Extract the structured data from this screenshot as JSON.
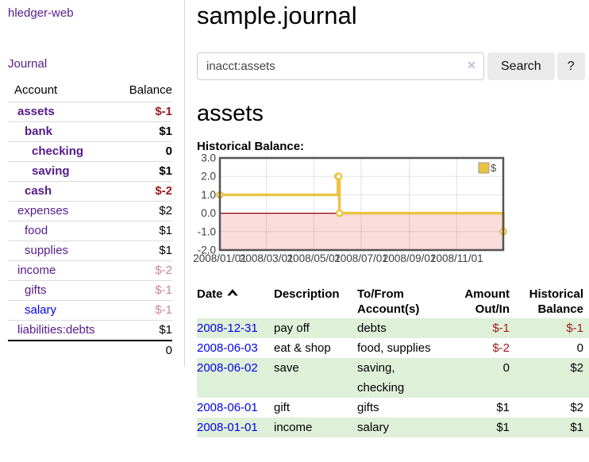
{
  "colors": {
    "link_purple": "#551a8b",
    "link_blue": "#0202ee",
    "negative_strong": "#9e1a1f",
    "negative_dim": "#c9898f",
    "row_highlight_green": "#dff0d8",
    "chart_line_yellow": "#edc240",
    "chart_negative_pink": "#fbdcdc",
    "chart_zero_line_red": "#8b0000",
    "chart_border_gray": "#545454",
    "button_gray": "#ebebeb"
  },
  "sidebar": {
    "app_title": "hledger-web",
    "nav": [
      {
        "label": "Journal"
      }
    ],
    "accounts_table": {
      "headers": [
        "Account",
        "Balance"
      ],
      "accounts": [
        {
          "name": "assets",
          "depth": 0,
          "bold": true,
          "balance": "$-1",
          "balance_style": "neg-strong"
        },
        {
          "name": "bank",
          "depth": 1,
          "bold": true,
          "balance": "$1",
          "balance_style": "pos"
        },
        {
          "name": "checking",
          "depth": 2,
          "bold": true,
          "balance": "0",
          "balance_style": "pos"
        },
        {
          "name": "saving",
          "depth": 2,
          "bold": true,
          "balance": "$1",
          "balance_style": "pos"
        },
        {
          "name": "cash",
          "depth": 1,
          "bold": true,
          "balance": "$-2",
          "balance_style": "neg-strong"
        },
        {
          "name": "expenses",
          "depth": 0,
          "bold": false,
          "balance": "$2",
          "balance_style": "pos"
        },
        {
          "name": "food",
          "depth": 1,
          "bold": false,
          "balance": "$1",
          "balance_style": "pos"
        },
        {
          "name": "supplies",
          "depth": 1,
          "bold": false,
          "balance": "$1",
          "balance_style": "pos"
        },
        {
          "name": "income",
          "depth": 0,
          "bold": false,
          "balance": "$-2",
          "balance_style": "neg-dim"
        },
        {
          "name": "gifts",
          "depth": 1,
          "bold": false,
          "balance": "$-1",
          "balance_style": "neg-dim"
        },
        {
          "name": "salary",
          "depth": 1,
          "bold": false,
          "link_color": "blue",
          "balance": "$-1",
          "balance_style": "neg-dim"
        },
        {
          "name": "liabilities:debts",
          "depth": 0,
          "bold": false,
          "balance": "$1",
          "balance_style": "pos"
        }
      ],
      "total": "0"
    }
  },
  "main": {
    "title": "sample.journal",
    "search": {
      "value": "inacct:assets",
      "clear_icon": "✕",
      "button": "Search",
      "help_button": "?"
    },
    "account_heading": "assets",
    "chart_label": "Historical Balance:"
  },
  "chart_data": {
    "type": "line",
    "step": true,
    "title": "Historical Balance:",
    "x": [
      "2008-01-01",
      "2008-06-01",
      "2008-06-02",
      "2008-06-03",
      "2008-12-31"
    ],
    "series": [
      {
        "name": "$",
        "values": [
          1,
          2,
          2,
          0,
          -1
        ]
      }
    ],
    "legend": [
      {
        "label": "$",
        "color": "#edc240"
      }
    ],
    "legend_position": "top-right",
    "x_ticks": [
      "2008/01/01",
      "2008/03/01",
      "2008/05/01",
      "2008/07/01",
      "2008/09/01",
      "2008/11/01"
    ],
    "y_ticks": [
      "3.0",
      "2.0",
      "1.0",
      "0.0",
      "-1.0",
      "-2.0"
    ],
    "xlim": [
      "2008-01-01",
      "2008-12-31"
    ],
    "ylim": [
      -2,
      3
    ],
    "grid": true,
    "negative_region_shaded": true,
    "xlabel": "",
    "ylabel": ""
  },
  "register": {
    "headers": [
      "Date",
      "Description",
      "To/From Account(s)",
      "Amount Out/In",
      "Historical Balance"
    ],
    "sort": {
      "column": "Date",
      "direction": "ascending"
    },
    "rows": [
      {
        "date": "2008-12-31",
        "description": "pay off",
        "accounts": "debts",
        "amount": "$-1",
        "amount_negative": true,
        "balance": "$-1",
        "balance_negative": true,
        "highlight": true
      },
      {
        "date": "2008-06-03",
        "description": "eat & shop",
        "accounts": "food, supplies",
        "amount": "$-2",
        "amount_negative": true,
        "balance": "0",
        "balance_negative": false,
        "highlight": false
      },
      {
        "date": "2008-06-02",
        "description": "save",
        "accounts": "saving, checking",
        "amount": "0",
        "amount_negative": false,
        "balance": "$2",
        "balance_negative": false,
        "highlight": true
      },
      {
        "date": "2008-06-01",
        "description": "gift",
        "accounts": "gifts",
        "amount": "$1",
        "amount_negative": false,
        "balance": "$2",
        "balance_negative": false,
        "highlight": false
      },
      {
        "date": "2008-01-01",
        "description": "income",
        "accounts": "salary",
        "amount": "$1",
        "amount_negative": false,
        "balance": "$1",
        "balance_negative": false,
        "highlight": true
      }
    ]
  }
}
